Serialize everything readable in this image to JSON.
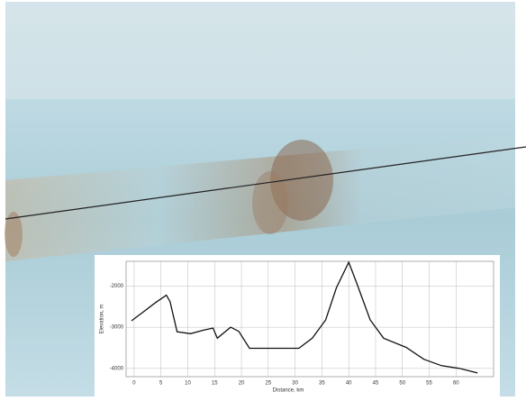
{
  "chart_data": {
    "type": "line",
    "x_label": "Distance, km",
    "y_label": "Elevation, m",
    "x": [
      -0.5,
      2,
      4,
      6,
      6.7,
      8,
      10.5,
      13,
      14.7,
      15.5,
      18,
      19.5,
      21.5,
      25.7,
      30.7,
      33.2,
      35.7,
      37.7,
      40,
      41.5,
      44,
      46.5,
      50.7,
      54,
      57.3,
      60.7,
      64
    ],
    "series": [
      {
        "color": "#111111",
        "values": [
          -2844,
          -2600,
          -2400,
          -2222,
          -2378,
          -3111,
          -3156,
          -3067,
          -3022,
          -3267,
          -3000,
          -3100,
          -3511,
          -3511,
          -3511,
          -3267,
          -2822,
          -2044,
          -1422,
          -1933,
          -2822,
          -3267,
          -3489,
          -3778,
          -3933,
          -4000,
          -4111
        ]
      }
    ],
    "xlim": [
      -1.5,
      67
    ],
    "ylim": [
      -4200,
      -1400
    ],
    "xticks": [
      0,
      5,
      10,
      15,
      20,
      25,
      30,
      35,
      40,
      45,
      50,
      55,
      60
    ],
    "yticks": [
      -2000,
      -3000,
      -4000
    ],
    "grid": true
  }
}
